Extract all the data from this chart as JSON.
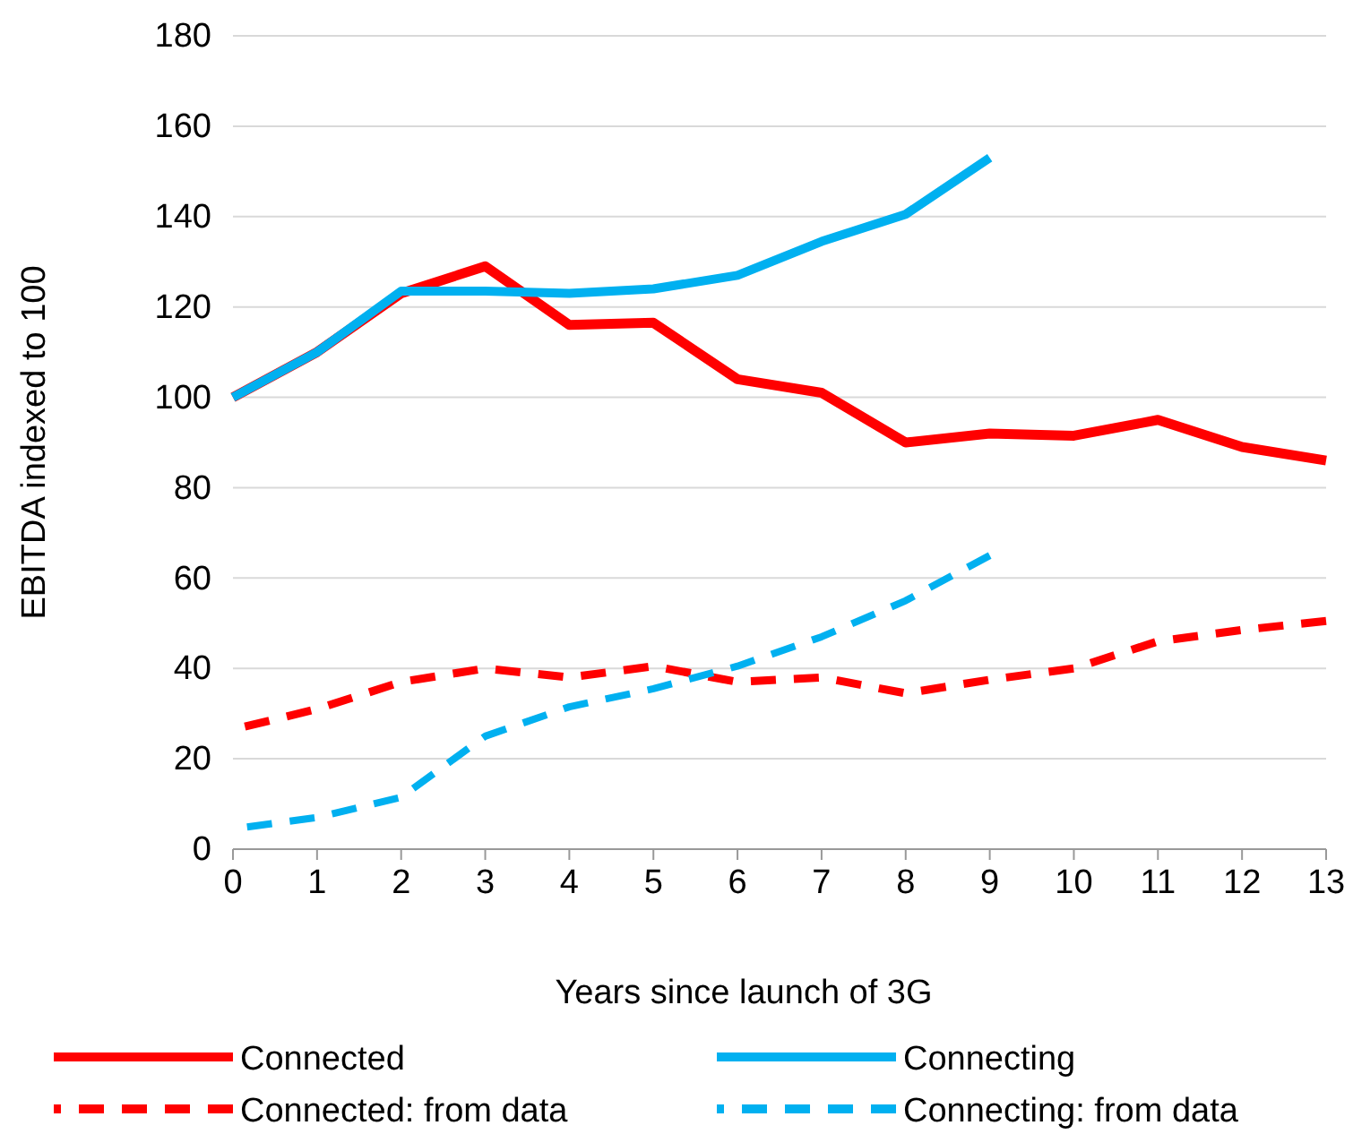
{
  "chart_data": {
    "type": "line",
    "xlabel": "Years since launch of 3G",
    "ylabel": "EBITDA indexed to 100",
    "x": [
      0,
      1,
      2,
      3,
      4,
      5,
      6,
      7,
      8,
      9,
      10,
      11,
      12,
      13
    ],
    "xlim": [
      0,
      13
    ],
    "xticks": [
      0,
      1,
      2,
      3,
      4,
      5,
      6,
      7,
      8,
      9,
      10,
      11,
      12,
      13
    ],
    "ylim": [
      0,
      180
    ],
    "yticks": [
      0,
      20,
      40,
      60,
      80,
      100,
      120,
      140,
      160,
      180
    ],
    "grid": "y",
    "legend": "bottom",
    "marker": "none",
    "series": [
      {
        "name": "Connected",
        "color": "#ff0000",
        "line_style": "solid",
        "values": [
          100,
          110,
          123,
          129,
          116,
          116.5,
          104,
          101,
          90,
          92,
          91.5,
          95,
          89,
          86
        ]
      },
      {
        "name": "Connecting",
        "color": "#00b0f0",
        "line_style": "solid",
        "values": [
          100,
          110,
          123.5,
          123.5,
          123,
          124,
          127,
          134.5,
          140.5,
          153,
          null,
          null,
          null,
          null
        ]
      },
      {
        "name": "Connected: from data",
        "color": "#ff0000",
        "line_style": "dashed",
        "values": [
          26.5,
          31,
          37,
          40,
          38,
          40.5,
          37,
          38,
          34.5,
          37.5,
          40,
          46,
          48.5,
          50.5
        ]
      },
      {
        "name": "Connecting: from data",
        "color": "#00b0f0",
        "line_style": "dashed",
        "values": [
          4.5,
          7,
          11.5,
          25,
          31.5,
          35.5,
          40.5,
          47,
          55,
          65,
          null,
          null,
          null,
          null
        ]
      }
    ]
  }
}
